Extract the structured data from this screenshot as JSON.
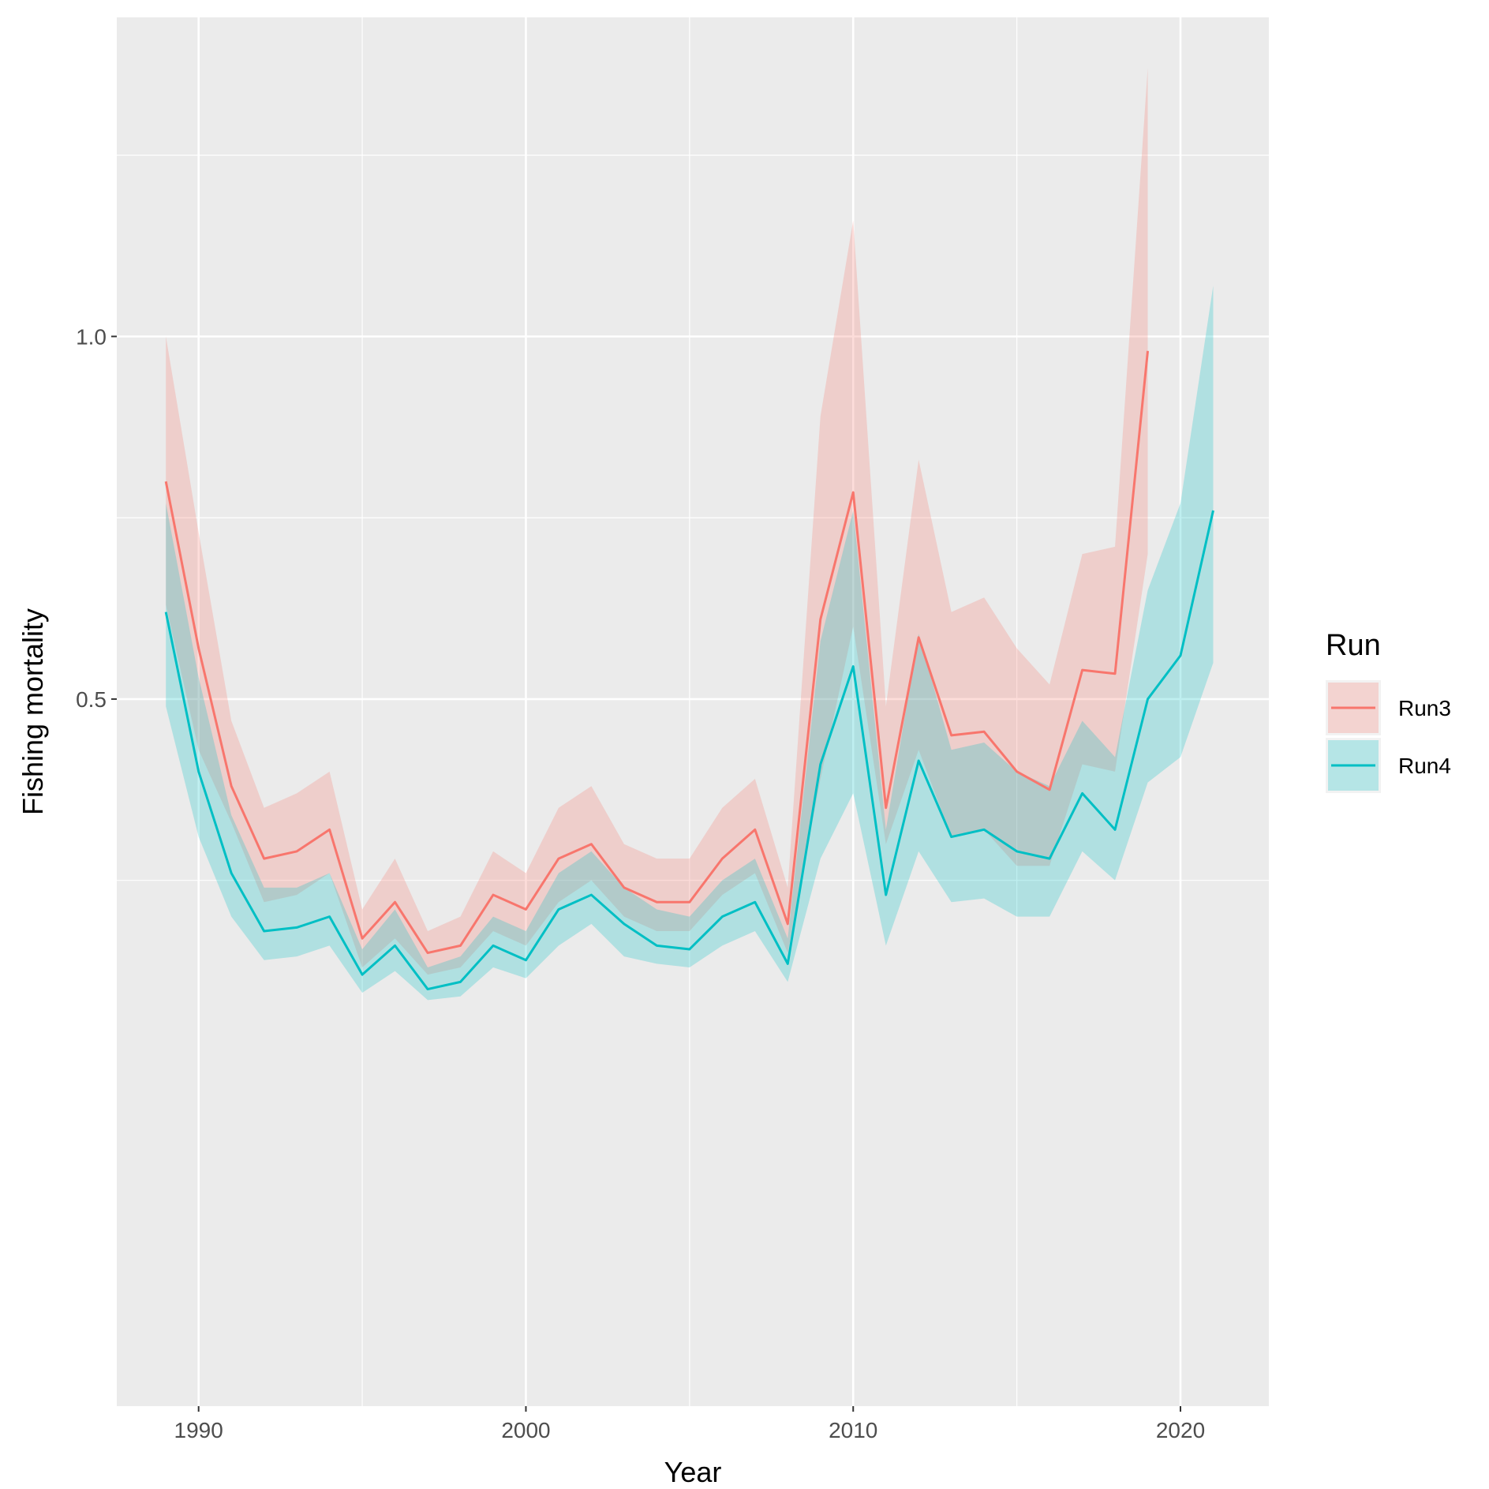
{
  "chart_data": {
    "type": "line",
    "xlabel": "Year",
    "ylabel": "Fishing mortality",
    "xlim": [
      1987.5,
      2022.7
    ],
    "ylim": [
      -0.475,
      1.44
    ],
    "x_ticks": [
      1990,
      2000,
      2010,
      2020
    ],
    "x_tick_labels": [
      "1990",
      "2000",
      "2010",
      "2020"
    ],
    "x_minor_ticks": [
      1995,
      2005,
      2015
    ],
    "y_ticks": [
      0.5,
      1.0
    ],
    "y_tick_labels": [
      "0.5",
      "1.0"
    ],
    "y_minor_ticks": [
      0.25,
      0.75,
      1.25
    ],
    "grid": true,
    "legend": {
      "title": "Run",
      "position": "right"
    },
    "series": [
      {
        "name": "Run3",
        "color": "#F8766D",
        "x": [
          1989,
          1990,
          1991,
          1992,
          1993,
          1994,
          1995,
          1996,
          1997,
          1998,
          1999,
          2000,
          2001,
          2002,
          2003,
          2004,
          2005,
          2006,
          2007,
          2008,
          2009,
          2010,
          2011,
          2012,
          2013,
          2014,
          2015,
          2016,
          2017,
          2018,
          2019
        ],
        "y": [
          0.8,
          0.57,
          0.38,
          0.28,
          0.29,
          0.32,
          0.17,
          0.22,
          0.15,
          0.16,
          0.23,
          0.21,
          0.28,
          0.3,
          0.24,
          0.22,
          0.22,
          0.28,
          0.32,
          0.19,
          0.61,
          0.785,
          0.35,
          0.585,
          0.45,
          0.455,
          0.4,
          0.375,
          0.54,
          0.535,
          0.98
        ],
        "lower": [
          0.63,
          0.43,
          0.33,
          0.22,
          0.23,
          0.26,
          0.13,
          0.17,
          0.12,
          0.13,
          0.18,
          0.16,
          0.22,
          0.25,
          0.2,
          0.18,
          0.18,
          0.23,
          0.26,
          0.15,
          0.39,
          0.6,
          0.3,
          0.43,
          0.31,
          0.32,
          0.27,
          0.27,
          0.41,
          0.4,
          0.7
        ],
        "upper": [
          1.0,
          0.73,
          0.47,
          0.35,
          0.37,
          0.4,
          0.21,
          0.28,
          0.18,
          0.2,
          0.29,
          0.26,
          0.35,
          0.38,
          0.3,
          0.28,
          0.28,
          0.35,
          0.39,
          0.24,
          0.89,
          1.16,
          0.49,
          0.83,
          0.62,
          0.64,
          0.57,
          0.52,
          0.7,
          0.71,
          1.37
        ]
      },
      {
        "name": "Run4",
        "color": "#00BFC4",
        "x": [
          1989,
          1990,
          1991,
          1992,
          1993,
          1994,
          1995,
          1996,
          1997,
          1998,
          1999,
          2000,
          2001,
          2002,
          2003,
          2004,
          2005,
          2006,
          2007,
          2008,
          2009,
          2010,
          2011,
          2012,
          2013,
          2014,
          2015,
          2016,
          2017,
          2018,
          2019,
          2020,
          2021
        ],
        "y": [
          0.62,
          0.4,
          0.26,
          0.18,
          0.185,
          0.2,
          0.12,
          0.16,
          0.1,
          0.11,
          0.16,
          0.14,
          0.21,
          0.23,
          0.19,
          0.16,
          0.155,
          0.2,
          0.22,
          0.135,
          0.41,
          0.545,
          0.23,
          0.415,
          0.31,
          0.32,
          0.29,
          0.28,
          0.37,
          0.32,
          0.5,
          0.56,
          0.76
        ],
        "lower": [
          0.49,
          0.31,
          0.2,
          0.14,
          0.145,
          0.16,
          0.095,
          0.125,
          0.085,
          0.09,
          0.13,
          0.115,
          0.16,
          0.19,
          0.145,
          0.135,
          0.13,
          0.16,
          0.18,
          0.11,
          0.28,
          0.37,
          0.16,
          0.29,
          0.22,
          0.225,
          0.2,
          0.2,
          0.29,
          0.25,
          0.385,
          0.42,
          0.55
        ],
        "upper": [
          0.77,
          0.53,
          0.34,
          0.24,
          0.24,
          0.26,
          0.155,
          0.21,
          0.13,
          0.145,
          0.2,
          0.18,
          0.26,
          0.29,
          0.24,
          0.21,
          0.2,
          0.25,
          0.28,
          0.17,
          0.58,
          0.76,
          0.32,
          0.59,
          0.43,
          0.44,
          0.4,
          0.38,
          0.47,
          0.42,
          0.65,
          0.77,
          1.07
        ]
      }
    ]
  }
}
